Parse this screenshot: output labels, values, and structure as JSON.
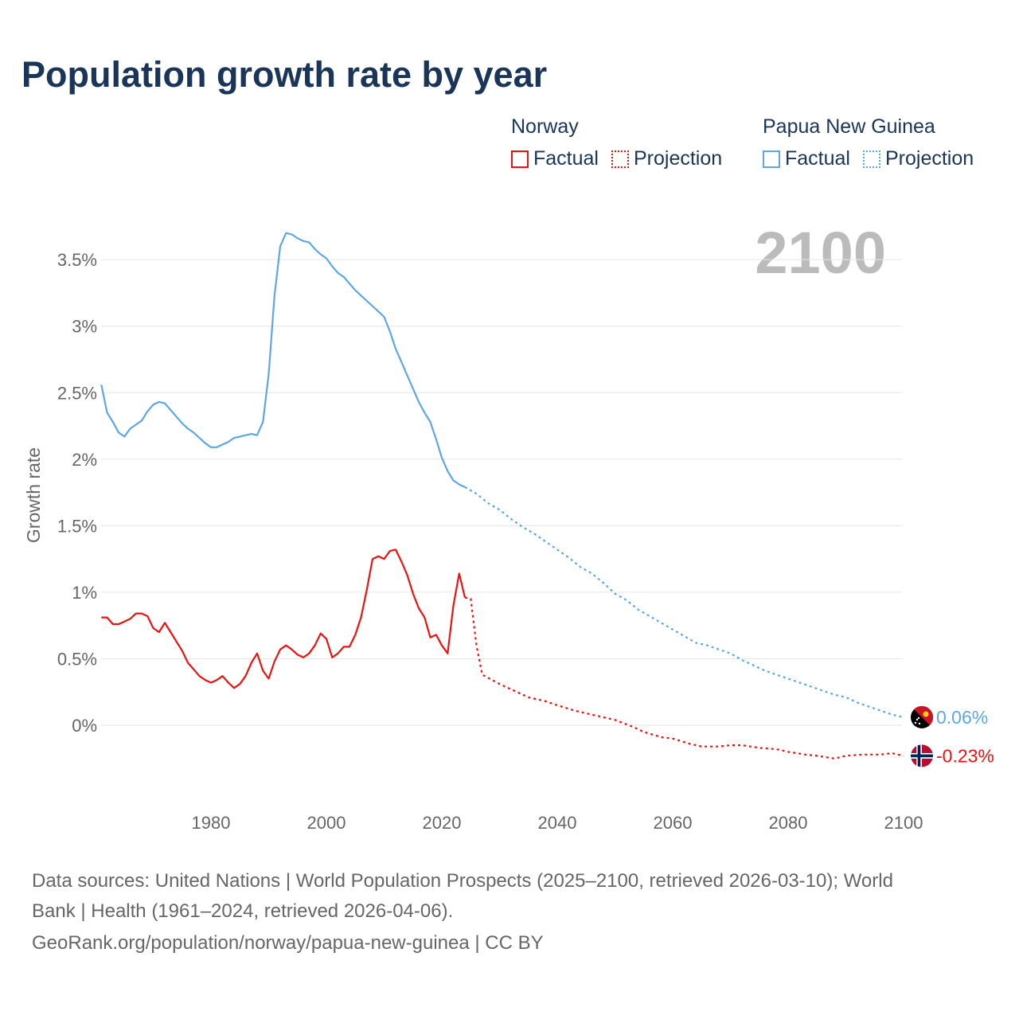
{
  "title": "Population growth rate by year",
  "year_display": "2100",
  "legend": [
    {
      "name": "Norway",
      "color": "#ee1111",
      "factual_label": "Factual",
      "projection_label": "Projection"
    },
    {
      "name": "Papua New Guinea",
      "color": "#5ea6e8",
      "factual_label": "Factual",
      "projection_label": "Projection"
    }
  ],
  "footer": {
    "line1": "Data sources: United Nations | World Population Prospects (2025–2100, retrieved 2026-03-10); World",
    "line2": "Bank | Health (1961–2024, retrieved 2026-04-06).",
    "line3": "GeoRank.org/population/norway/papua-new-guinea | CC BY"
  },
  "chart_data": {
    "type": "line",
    "title": "Population growth rate by year",
    "xlabel": "",
    "ylabel": "Growth rate",
    "xlim": [
      1961,
      2100
    ],
    "ylim": [
      -0.5,
      3.9
    ],
    "x_ticks": [
      1980,
      2000,
      2020,
      2040,
      2060,
      2080,
      2100
    ],
    "y_ticks": [
      0,
      0.5,
      1,
      1.5,
      2,
      2.5,
      3,
      3.5
    ],
    "y_tick_labels": [
      "0%",
      "0.5%",
      "1%",
      "1.5%",
      "2%",
      "2.5%",
      "3%",
      "3.5%"
    ],
    "x_tick_labels": [
      "1980",
      "2000",
      "2020",
      "2040",
      "2060",
      "2080",
      "2100"
    ],
    "grid": true,
    "series": [
      {
        "name": "Papua New Guinea",
        "color": "#5ea6e8",
        "end_label": "0.06%",
        "factual_start_year": 1961,
        "factual": [
          2.56,
          2.35,
          2.28,
          2.2,
          2.17,
          2.23,
          2.26,
          2.29,
          2.36,
          2.41,
          2.43,
          2.42,
          2.37,
          2.32,
          2.27,
          2.23,
          2.2,
          2.16,
          2.12,
          2.09,
          2.09,
          2.11,
          2.13,
          2.16,
          2.17,
          2.18,
          2.19,
          2.18,
          2.28,
          2.64,
          3.23,
          3.6,
          3.7,
          3.69,
          3.66,
          3.64,
          3.63,
          3.58,
          3.54,
          3.51,
          3.45,
          3.4,
          3.37,
          3.32,
          3.27,
          3.23,
          3.19,
          3.15,
          3.11,
          3.07,
          2.96,
          2.83,
          2.73,
          2.63,
          2.53,
          2.43,
          2.35,
          2.28,
          2.15,
          2.01,
          1.91,
          1.84,
          1.81,
          1.79
        ],
        "projection": [
          [
            2024,
            1.79
          ],
          [
            2026,
            1.74
          ],
          [
            2028,
            1.67
          ],
          [
            2030,
            1.62
          ],
          [
            2032,
            1.55
          ],
          [
            2034,
            1.49
          ],
          [
            2036,
            1.44
          ],
          [
            2038,
            1.38
          ],
          [
            2040,
            1.32
          ],
          [
            2042,
            1.26
          ],
          [
            2044,
            1.19
          ],
          [
            2046,
            1.14
          ],
          [
            2048,
            1.07
          ],
          [
            2050,
            0.99
          ],
          [
            2052,
            0.94
          ],
          [
            2054,
            0.87
          ],
          [
            2056,
            0.82
          ],
          [
            2058,
            0.77
          ],
          [
            2060,
            0.72
          ],
          [
            2062,
            0.67
          ],
          [
            2064,
            0.62
          ],
          [
            2066,
            0.6
          ],
          [
            2068,
            0.57
          ],
          [
            2070,
            0.54
          ],
          [
            2072,
            0.49
          ],
          [
            2074,
            0.45
          ],
          [
            2076,
            0.41
          ],
          [
            2078,
            0.38
          ],
          [
            2080,
            0.35
          ],
          [
            2082,
            0.32
          ],
          [
            2084,
            0.29
          ],
          [
            2086,
            0.26
          ],
          [
            2088,
            0.23
          ],
          [
            2090,
            0.21
          ],
          [
            2092,
            0.17
          ],
          [
            2094,
            0.14
          ],
          [
            2096,
            0.11
          ],
          [
            2098,
            0.08
          ],
          [
            2100,
            0.06
          ]
        ]
      },
      {
        "name": "Norway",
        "color": "#ee1111",
        "end_label": "-0.23%",
        "factual_start_year": 1961,
        "factual": [
          0.81,
          0.81,
          0.76,
          0.76,
          0.78,
          0.8,
          0.84,
          0.84,
          0.82,
          0.73,
          0.7,
          0.77,
          0.7,
          0.63,
          0.56,
          0.47,
          0.42,
          0.37,
          0.34,
          0.32,
          0.34,
          0.37,
          0.32,
          0.28,
          0.31,
          0.37,
          0.47,
          0.54,
          0.41,
          0.35,
          0.48,
          0.57,
          0.6,
          0.57,
          0.53,
          0.51,
          0.54,
          0.6,
          0.69,
          0.65,
          0.51,
          0.54,
          0.59,
          0.59,
          0.68,
          0.81,
          1.02,
          1.25,
          1.27,
          1.25,
          1.31,
          1.32,
          1.23,
          1.13,
          0.99,
          0.88,
          0.81,
          0.66,
          0.68,
          0.6,
          0.54,
          0.9,
          1.14,
          0.96
        ],
        "projection": [
          [
            2024,
            0.96
          ],
          [
            2025,
            0.95
          ],
          [
            2026,
            0.6
          ],
          [
            2027,
            0.38
          ],
          [
            2030,
            0.31
          ],
          [
            2033,
            0.25
          ],
          [
            2035,
            0.21
          ],
          [
            2038,
            0.18
          ],
          [
            2040,
            0.15
          ],
          [
            2043,
            0.11
          ],
          [
            2045,
            0.09
          ],
          [
            2048,
            0.06
          ],
          [
            2050,
            0.04
          ],
          [
            2053,
            -0.01
          ],
          [
            2055,
            -0.05
          ],
          [
            2058,
            -0.09
          ],
          [
            2060,
            -0.1
          ],
          [
            2063,
            -0.14
          ],
          [
            2065,
            -0.16
          ],
          [
            2068,
            -0.16
          ],
          [
            2070,
            -0.15
          ],
          [
            2072,
            -0.15
          ],
          [
            2075,
            -0.17
          ],
          [
            2078,
            -0.18
          ],
          [
            2080,
            -0.2
          ],
          [
            2083,
            -0.22
          ],
          [
            2085,
            -0.23
          ],
          [
            2088,
            -0.25
          ],
          [
            2090,
            -0.23
          ],
          [
            2093,
            -0.22
          ],
          [
            2096,
            -0.22
          ],
          [
            2098,
            -0.21
          ],
          [
            2100,
            -0.23
          ]
        ]
      }
    ]
  }
}
